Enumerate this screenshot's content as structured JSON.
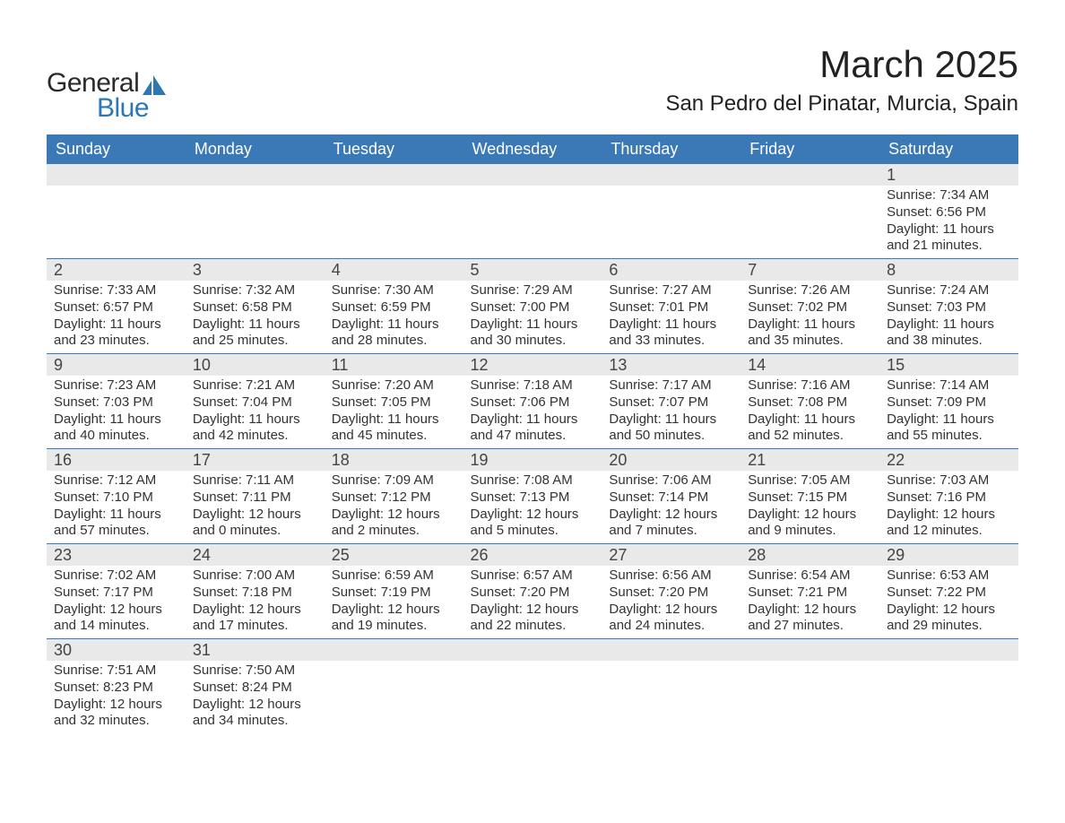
{
  "logo": {
    "word1": "General",
    "word2": "Blue"
  },
  "title": "March 2025",
  "location": "San Pedro del Pinatar, Murcia, Spain",
  "columns": [
    "Sunday",
    "Monday",
    "Tuesday",
    "Wednesday",
    "Thursday",
    "Friday",
    "Saturday"
  ],
  "colors": {
    "header_blue": "#3b78b6",
    "day_bg": "#e9e9e9",
    "text": "#333333",
    "logo_blue": "#2d77b7",
    "background": "#ffffff"
  },
  "typography": {
    "title_fontsize": 42,
    "location_fontsize": 24,
    "header_fontsize": 18,
    "daynum_fontsize": 18,
    "body_fontsize": 15,
    "font_family": "Arial"
  },
  "labels": {
    "sunrise": "Sunrise:",
    "sunset": "Sunset:",
    "daylight": "Daylight:"
  },
  "weeks": [
    [
      null,
      null,
      null,
      null,
      null,
      null,
      {
        "n": "1",
        "sr": "7:34 AM",
        "ss": "6:56 PM",
        "dl": "11 hours and 21 minutes."
      }
    ],
    [
      {
        "n": "2",
        "sr": "7:33 AM",
        "ss": "6:57 PM",
        "dl": "11 hours and 23 minutes."
      },
      {
        "n": "3",
        "sr": "7:32 AM",
        "ss": "6:58 PM",
        "dl": "11 hours and 25 minutes."
      },
      {
        "n": "4",
        "sr": "7:30 AM",
        "ss": "6:59 PM",
        "dl": "11 hours and 28 minutes."
      },
      {
        "n": "5",
        "sr": "7:29 AM",
        "ss": "7:00 PM",
        "dl": "11 hours and 30 minutes."
      },
      {
        "n": "6",
        "sr": "7:27 AM",
        "ss": "7:01 PM",
        "dl": "11 hours and 33 minutes."
      },
      {
        "n": "7",
        "sr": "7:26 AM",
        "ss": "7:02 PM",
        "dl": "11 hours and 35 minutes."
      },
      {
        "n": "8",
        "sr": "7:24 AM",
        "ss": "7:03 PM",
        "dl": "11 hours and 38 minutes."
      }
    ],
    [
      {
        "n": "9",
        "sr": "7:23 AM",
        "ss": "7:03 PM",
        "dl": "11 hours and 40 minutes."
      },
      {
        "n": "10",
        "sr": "7:21 AM",
        "ss": "7:04 PM",
        "dl": "11 hours and 42 minutes."
      },
      {
        "n": "11",
        "sr": "7:20 AM",
        "ss": "7:05 PM",
        "dl": "11 hours and 45 minutes."
      },
      {
        "n": "12",
        "sr": "7:18 AM",
        "ss": "7:06 PM",
        "dl": "11 hours and 47 minutes."
      },
      {
        "n": "13",
        "sr": "7:17 AM",
        "ss": "7:07 PM",
        "dl": "11 hours and 50 minutes."
      },
      {
        "n": "14",
        "sr": "7:16 AM",
        "ss": "7:08 PM",
        "dl": "11 hours and 52 minutes."
      },
      {
        "n": "15",
        "sr": "7:14 AM",
        "ss": "7:09 PM",
        "dl": "11 hours and 55 minutes."
      }
    ],
    [
      {
        "n": "16",
        "sr": "7:12 AM",
        "ss": "7:10 PM",
        "dl": "11 hours and 57 minutes."
      },
      {
        "n": "17",
        "sr": "7:11 AM",
        "ss": "7:11 PM",
        "dl": "12 hours and 0 minutes."
      },
      {
        "n": "18",
        "sr": "7:09 AM",
        "ss": "7:12 PM",
        "dl": "12 hours and 2 minutes."
      },
      {
        "n": "19",
        "sr": "7:08 AM",
        "ss": "7:13 PM",
        "dl": "12 hours and 5 minutes."
      },
      {
        "n": "20",
        "sr": "7:06 AM",
        "ss": "7:14 PM",
        "dl": "12 hours and 7 minutes."
      },
      {
        "n": "21",
        "sr": "7:05 AM",
        "ss": "7:15 PM",
        "dl": "12 hours and 9 minutes."
      },
      {
        "n": "22",
        "sr": "7:03 AM",
        "ss": "7:16 PM",
        "dl": "12 hours and 12 minutes."
      }
    ],
    [
      {
        "n": "23",
        "sr": "7:02 AM",
        "ss": "7:17 PM",
        "dl": "12 hours and 14 minutes."
      },
      {
        "n": "24",
        "sr": "7:00 AM",
        "ss": "7:18 PM",
        "dl": "12 hours and 17 minutes."
      },
      {
        "n": "25",
        "sr": "6:59 AM",
        "ss": "7:19 PM",
        "dl": "12 hours and 19 minutes."
      },
      {
        "n": "26",
        "sr": "6:57 AM",
        "ss": "7:20 PM",
        "dl": "12 hours and 22 minutes."
      },
      {
        "n": "27",
        "sr": "6:56 AM",
        "ss": "7:20 PM",
        "dl": "12 hours and 24 minutes."
      },
      {
        "n": "28",
        "sr": "6:54 AM",
        "ss": "7:21 PM",
        "dl": "12 hours and 27 minutes."
      },
      {
        "n": "29",
        "sr": "6:53 AM",
        "ss": "7:22 PM",
        "dl": "12 hours and 29 minutes."
      }
    ],
    [
      {
        "n": "30",
        "sr": "7:51 AM",
        "ss": "8:23 PM",
        "dl": "12 hours and 32 minutes."
      },
      {
        "n": "31",
        "sr": "7:50 AM",
        "ss": "8:24 PM",
        "dl": "12 hours and 34 minutes."
      },
      null,
      null,
      null,
      null,
      null
    ]
  ]
}
